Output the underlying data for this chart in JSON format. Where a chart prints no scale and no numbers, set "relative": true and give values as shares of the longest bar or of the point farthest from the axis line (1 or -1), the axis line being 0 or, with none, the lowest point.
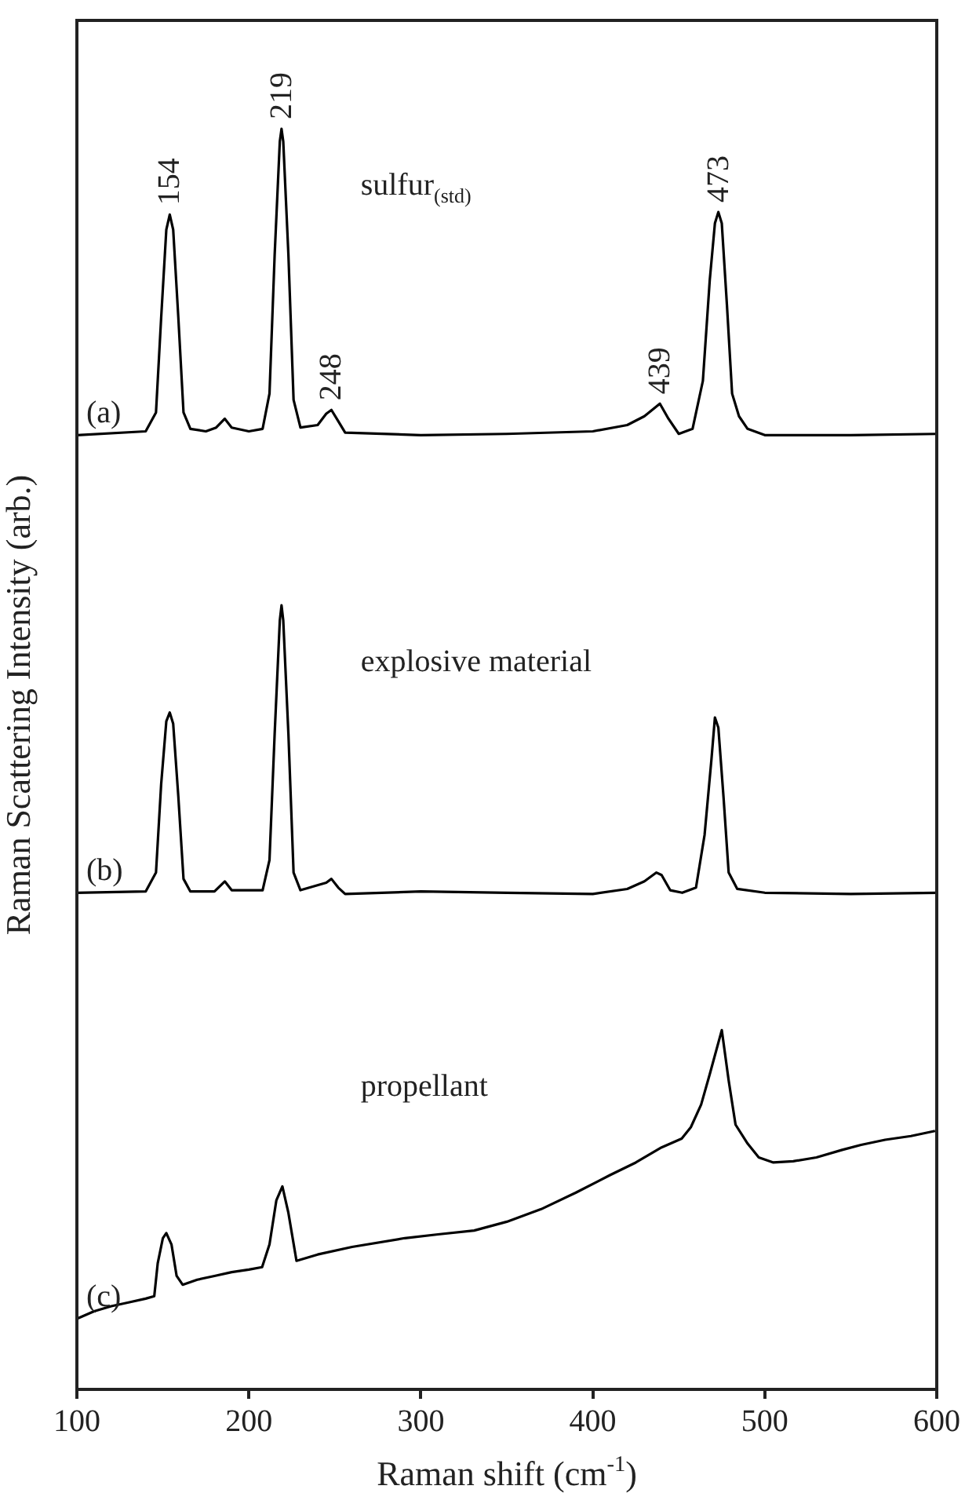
{
  "chart_data": {
    "type": "line",
    "relative": true,
    "xlabel": "Raman shift (cm$^{-1}$)",
    "ylabel": "Raman Scattering Intensity (arb.)",
    "xlim": [
      100,
      600
    ],
    "xticks": [
      100,
      200,
      300,
      400,
      500,
      600
    ],
    "grid": false,
    "legend": false,
    "marker": "none",
    "line_style": "solid",
    "series": [
      {
        "name": "(a)",
        "color": "#000000",
        "x": [
          100,
          140,
          146,
          149,
          152,
          154,
          156,
          159,
          162,
          166,
          175,
          181,
          186,
          190,
          200,
          208,
          212,
          215,
          218,
          219,
          220,
          223,
          226,
          230,
          240,
          245,
          248,
          252,
          256,
          300,
          350,
          400,
          420,
          430,
          439,
          444,
          450,
          458,
          464,
          468,
          471,
          473,
          475,
          478,
          481,
          485,
          490,
          500,
          550,
          600
        ],
        "values": [
          0.757,
          0.76,
          0.775,
          0.85,
          0.92,
          0.932,
          0.92,
          0.85,
          0.775,
          0.762,
          0.76,
          0.763,
          0.77,
          0.763,
          0.76,
          0.762,
          0.79,
          0.9,
          0.99,
          1.0,
          0.99,
          0.9,
          0.785,
          0.763,
          0.765,
          0.774,
          0.777,
          0.768,
          0.759,
          0.757,
          0.758,
          0.76,
          0.765,
          0.772,
          0.782,
          0.77,
          0.758,
          0.762,
          0.8,
          0.88,
          0.925,
          0.934,
          0.925,
          0.86,
          0.79,
          0.772,
          0.762,
          0.757,
          0.757,
          0.758
        ]
      },
      {
        "name": "(b)",
        "color": "#000000",
        "x": [
          100,
          140,
          146,
          149,
          152,
          154,
          156,
          159,
          162,
          166,
          180,
          186,
          190,
          208,
          212,
          215,
          218,
          219,
          220,
          223,
          226,
          230,
          245,
          248,
          252,
          256,
          300,
          350,
          400,
          420,
          430,
          437,
          440,
          445,
          452,
          460,
          465,
          469,
          471,
          473,
          476,
          479,
          484,
          500,
          550,
          600
        ],
        "values": [
          0.394,
          0.395,
          0.41,
          0.48,
          0.53,
          0.537,
          0.528,
          0.47,
          0.405,
          0.395,
          0.395,
          0.403,
          0.396,
          0.396,
          0.42,
          0.52,
          0.61,
          0.622,
          0.61,
          0.52,
          0.41,
          0.396,
          0.402,
          0.405,
          0.398,
          0.393,
          0.395,
          0.394,
          0.393,
          0.397,
          0.403,
          0.41,
          0.408,
          0.396,
          0.394,
          0.398,
          0.44,
          0.5,
          0.533,
          0.525,
          0.47,
          0.41,
          0.397,
          0.394,
          0.393,
          0.394
        ]
      },
      {
        "name": "(c)",
        "color": "#000000",
        "x": [
          100,
          110,
          120,
          130,
          140,
          145,
          147,
          150,
          152,
          155,
          158,
          161.5,
          170,
          180,
          190,
          200,
          207.7,
          212,
          216,
          219.5,
          223,
          227.7,
          240,
          260,
          290.7,
          310,
          331,
          350,
          370,
          390,
          410,
          425,
          440,
          451.7,
          457,
          463,
          468,
          475,
          479,
          483,
          490,
          496.5,
          505,
          516.5,
          530,
          545,
          556,
          570,
          585,
          599
        ],
        "values": [
          0.056,
          0.062,
          0.066,
          0.069,
          0.072,
          0.074,
          0.1,
          0.12,
          0.124,
          0.115,
          0.09,
          0.083,
          0.087,
          0.09,
          0.093,
          0.095,
          0.097,
          0.115,
          0.15,
          0.161,
          0.14,
          0.102,
          0.107,
          0.113,
          0.12,
          0.123,
          0.126,
          0.133,
          0.143,
          0.156,
          0.17,
          0.18,
          0.192,
          0.199,
          0.208,
          0.226,
          0.25,
          0.285,
          0.245,
          0.21,
          0.195,
          0.184,
          0.18,
          0.181,
          0.184,
          0.19,
          0.194,
          0.198,
          0.201,
          0.205
        ]
      }
    ],
    "annotations": [
      {
        "text": "154",
        "x": 154,
        "y": 0.932
      },
      {
        "text": "219",
        "x": 219,
        "y": 1.0
      },
      {
        "text": "248",
        "x": 248,
        "y": 0.777
      },
      {
        "text": "439",
        "x": 439,
        "y": 0.782
      },
      {
        "text": "473",
        "x": 473,
        "y": 0.934
      },
      "sulfur$_{(std)}$",
      "explosive material",
      "propellant"
    ]
  }
}
